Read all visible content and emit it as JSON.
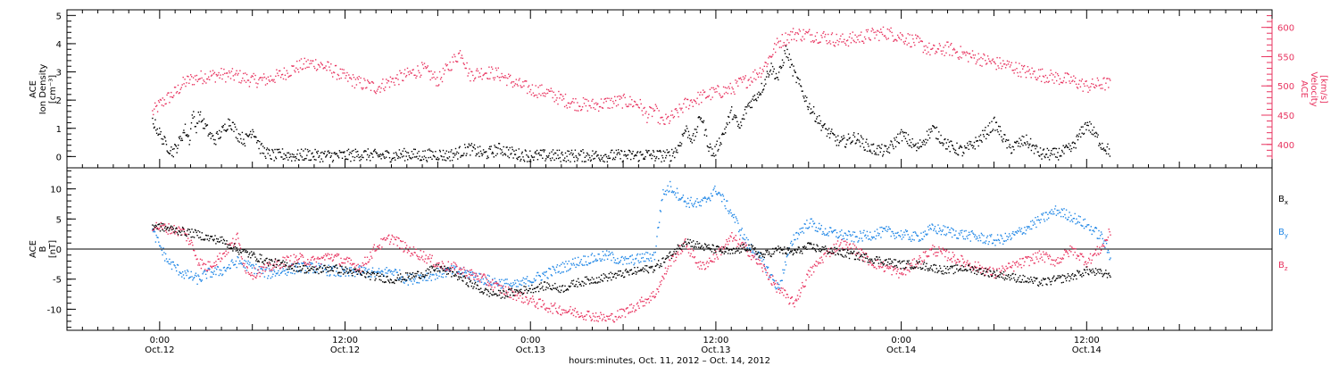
{
  "colors": {
    "density": "#000000",
    "velocity": "#e8335f",
    "bx": "#000000",
    "by": "#1e86e6",
    "bz": "#e8335f",
    "axis": "#000000"
  },
  "chart_data": [
    {
      "type": "scatter",
      "panel": "top",
      "ylabel_left": [
        "ACE",
        "Ion Density",
        "[cm⁻³]"
      ],
      "ylabel_right": [
        "ACE",
        "Velocity",
        "[km/s]"
      ],
      "ylim_left": [
        -0.4,
        5.2
      ],
      "ylim_right": [
        360,
        630
      ],
      "yticks_left": [
        0,
        1,
        2,
        3,
        4,
        5
      ],
      "yticks_right": [
        400,
        450,
        500,
        550,
        600
      ],
      "series": [
        {
          "axis": "left",
          "x": [
            -0.5,
            0.0,
            0.3,
            0.6,
            0.8,
            1.0,
            1.2,
            1.6,
            1.9,
            2.1,
            2.3,
            2.5,
            2.8,
            3.2,
            3.5,
            4.0,
            4.5,
            5.0,
            5.5,
            6.0,
            6.5,
            7.0,
            7.5,
            8.0,
            8.5,
            9.0,
            9.5,
            10.0,
            11.0,
            12.0,
            13.0,
            14.0,
            15.0,
            16.0,
            17.0,
            18.0,
            18.5,
            19.0,
            20.0,
            21.0,
            22.0,
            23.0,
            24.0,
            25.0,
            26.0,
            27.0,
            28.0,
            29.0,
            30.0,
            31.0,
            31.5,
            32.0,
            33.0,
            33.5,
            34.0,
            34.5,
            35.0,
            35.5,
            35.8,
            36.0,
            36.5,
            37.0,
            37.5,
            38.0,
            38.5,
            39.0,
            39.5,
            40.0,
            40.5,
            41.0,
            42.0,
            43.0,
            44.0,
            45.0,
            46.0,
            47.0,
            48.0,
            49.0,
            50.0,
            51.0,
            52.0,
            53.0,
            54.0,
            55.0,
            56.0,
            57.0,
            58.0,
            59.0,
            60.0,
            61.0,
            61.5
          ],
          "y": [
            1.3,
            0.8,
            0.5,
            0.3,
            0.2,
            0.3,
            0.5,
            1.0,
            0.6,
            1.6,
            1.0,
            1.5,
            1.2,
            0.8,
            0.6,
            0.9,
            1.3,
            0.8,
            0.6,
            1.0,
            0.3,
            0.1,
            0.05,
            0.1,
            0.05,
            0.05,
            0.1,
            0.05,
            0.05,
            0.05,
            0.1,
            0.05,
            0.05,
            0.1,
            0.05,
            0.1,
            0.05,
            0.1,
            0.3,
            0.1,
            0.3,
            0.1,
            0.05,
            0.05,
            0.05,
            0.05,
            0.05,
            0.05,
            0.05,
            0.05,
            0.1,
            0.05,
            0.05,
            0.3,
            1.0,
            0.6,
            1.5,
            0.4,
            0.1,
            0.3,
            0.9,
            1.6,
            1.0,
            1.8,
            2.1,
            2.5,
            3.2,
            2.8,
            3.8,
            3.0,
            1.8,
            1.0,
            0.5,
            0.7,
            0.3,
            0.2,
            0.8,
            0.3,
            1.0,
            0.4,
            0.2,
            0.6,
            1.2,
            0.3,
            0.6,
            0.1,
            0.1,
            0.3,
            1.2,
            0.4,
            0.2
          ]
        },
        {
          "axis": "right",
          "x": [
            -0.5,
            0.0,
            0.5,
            1.0,
            1.5,
            2.0,
            3.0,
            4.0,
            5.0,
            6.0,
            7.0,
            8.0,
            9.0,
            10.0,
            11.0,
            12.0,
            13.0,
            14.0,
            15.0,
            16.0,
            17.0,
            18.0,
            19.0,
            19.5,
            20.0,
            21.0,
            22.0,
            23.0,
            24.0,
            25.0,
            26.0,
            27.0,
            28.0,
            29.0,
            30.0,
            31.0,
            31.5,
            32.0,
            32.5,
            33.0,
            33.5,
            34.0,
            35.0,
            36.0,
            37.0,
            37.5,
            38.0,
            39.0,
            40.0,
            41.0,
            42.0,
            43.0,
            44.0,
            45.0,
            46.0,
            47.0,
            48.0,
            49.0,
            50.0,
            51.0,
            52.0,
            53.0,
            54.0,
            55.0,
            56.0,
            57.0,
            58.0,
            59.0,
            60.0,
            61.0,
            61.5
          ],
          "y": [
            455,
            470,
            480,
            490,
            505,
            512,
            518,
            520,
            518,
            510,
            512,
            522,
            535,
            540,
            530,
            515,
            505,
            498,
            510,
            520,
            530,
            510,
            545,
            560,
            520,
            525,
            520,
            505,
            495,
            490,
            478,
            470,
            468,
            472,
            475,
            470,
            450,
            460,
            438,
            445,
            455,
            470,
            482,
            490,
            495,
            505,
            510,
            530,
            575,
            590,
            588,
            585,
            578,
            582,
            588,
            592,
            585,
            575,
            560,
            565,
            555,
            548,
            540,
            535,
            525,
            520,
            515,
            510,
            500,
            505,
            503
          ]
        }
      ]
    },
    {
      "type": "scatter",
      "panel": "bottom",
      "ylabel": [
        "ACE",
        "B",
        "[nT]"
      ],
      "ylim": [
        -13.5,
        13.5
      ],
      "yticks": [
        -10,
        -5,
        0,
        5,
        10
      ],
      "series": [
        {
          "name": "B",
          "sub": "x",
          "x": [
            -0.5,
            0.5,
            1.5,
            2.5,
            3.0,
            4.0,
            5.0,
            6.0,
            7.0,
            8.0,
            9.0,
            10.0,
            11.0,
            12.0,
            13.0,
            14.0,
            15.0,
            16.0,
            17.0,
            18.0,
            19.0,
            20.0,
            21.0,
            22.0,
            23.0,
            24.0,
            25.0,
            26.0,
            27.0,
            28.0,
            29.0,
            30.0,
            31.0,
            32.0,
            33.0,
            34.0,
            35.0,
            36.0,
            37.0,
            38.0,
            39.0,
            40.0,
            41.0,
            42.0,
            43.0,
            44.0,
            45.0,
            46.0,
            47.0,
            48.0,
            49.0,
            50.0,
            51.0,
            52.0,
            53.0,
            54.0,
            55.0,
            56.0,
            57.0,
            58.0,
            59.0,
            60.0,
            61.0,
            61.5
          ],
          "y": [
            4.0,
            3.5,
            3.0,
            2.5,
            2.0,
            1.5,
            0.0,
            -1.0,
            -2.0,
            -2.5,
            -3.0,
            -3.5,
            -3.0,
            -3.5,
            -4.0,
            -4.5,
            -5.0,
            -4.5,
            -4.0,
            -3.0,
            -4.0,
            -5.5,
            -7.0,
            -7.5,
            -7.0,
            -6.5,
            -6.0,
            -6.5,
            -5.5,
            -5.0,
            -4.5,
            -4.0,
            -3.5,
            -3.0,
            -1.0,
            1.5,
            0.5,
            0.0,
            -0.5,
            0.5,
            -1.0,
            0.0,
            -0.5,
            0.5,
            0.0,
            -0.5,
            -1.0,
            -1.5,
            -2.0,
            -2.5,
            -2.5,
            -3.0,
            -3.5,
            -3.0,
            -3.5,
            -4.0,
            -4.5,
            -5.0,
            -5.5,
            -5.0,
            -4.5,
            -3.5,
            -4.0,
            -4.0
          ]
        },
        {
          "name": "B",
          "sub": "y",
          "x": [
            -0.5,
            0.5,
            1.5,
            2.5,
            3.0,
            4.0,
            5.0,
            6.0,
            7.0,
            8.0,
            9.0,
            10.0,
            11.0,
            12.0,
            13.0,
            14.0,
            15.0,
            16.0,
            17.0,
            18.0,
            19.0,
            20.0,
            21.0,
            22.0,
            23.0,
            24.0,
            25.0,
            26.0,
            27.0,
            28.0,
            29.0,
            30.0,
            31.0,
            32.0,
            32.5,
            33.0,
            34.0,
            35.0,
            36.0,
            37.0,
            38.0,
            39.0,
            40.0,
            41.0,
            42.0,
            43.0,
            44.0,
            45.0,
            46.0,
            47.0,
            48.0,
            49.0,
            50.0,
            51.0,
            52.0,
            53.0,
            54.0,
            55.0,
            56.0,
            57.0,
            58.0,
            59.0,
            60.0,
            61.0,
            61.5
          ],
          "y": [
            3.0,
            -2.0,
            -4.0,
            -5.0,
            -4.0,
            -3.5,
            -2.0,
            -3.0,
            -4.0,
            -3.5,
            -3.0,
            -3.0,
            -3.5,
            -4.0,
            -3.5,
            -4.0,
            -3.5,
            -5.0,
            -4.5,
            -4.0,
            -3.5,
            -4.0,
            -5.0,
            -5.5,
            -6.0,
            -5.0,
            -4.0,
            -3.0,
            -2.0,
            -1.5,
            -1.0,
            -2.0,
            -1.5,
            -1.0,
            9.0,
            10.5,
            8.0,
            7.5,
            10.0,
            6.0,
            1.0,
            -2.0,
            -6.5,
            2.0,
            4.5,
            3.0,
            2.5,
            2.0,
            2.5,
            3.0,
            2.5,
            2.0,
            3.5,
            3.0,
            2.5,
            2.0,
            1.5,
            2.0,
            3.5,
            5.0,
            6.5,
            5.5,
            4.0,
            2.0,
            -1.5
          ]
        },
        {
          "name": "B",
          "sub": "z",
          "x": [
            -0.5,
            0.5,
            1.5,
            2.0,
            2.5,
            3.0,
            4.0,
            5.0,
            5.5,
            6.0,
            7.0,
            8.0,
            9.0,
            10.0,
            11.0,
            12.0,
            13.0,
            14.0,
            15.0,
            16.0,
            17.0,
            18.0,
            19.0,
            20.0,
            21.0,
            22.0,
            23.0,
            24.0,
            25.0,
            26.0,
            27.0,
            28.0,
            29.0,
            30.0,
            31.0,
            32.0,
            32.5,
            33.0,
            34.0,
            35.0,
            36.0,
            37.0,
            38.0,
            39.0,
            40.0,
            41.0,
            42.0,
            43.0,
            44.0,
            45.0,
            46.0,
            47.0,
            48.0,
            49.0,
            50.0,
            51.0,
            52.0,
            53.0,
            54.0,
            55.0,
            56.0,
            57.0,
            58.0,
            59.0,
            60.0,
            61.0,
            61.5
          ],
          "y": [
            4.0,
            3.5,
            3.0,
            1.0,
            -2.0,
            -3.0,
            -1.0,
            2.0,
            -3.0,
            -4.0,
            -3.0,
            -2.0,
            -1.5,
            -2.0,
            -1.0,
            -2.0,
            -3.0,
            0.5,
            2.0,
            0.0,
            -1.0,
            -2.5,
            -3.0,
            -4.0,
            -5.0,
            -6.5,
            -7.5,
            -8.5,
            -9.5,
            -10.0,
            -10.5,
            -11.0,
            -11.5,
            -10.5,
            -9.0,
            -7.5,
            -5.0,
            -2.0,
            1.0,
            -3.0,
            -1.0,
            2.0,
            0.0,
            -3.0,
            -6.5,
            -9.0,
            -4.0,
            -1.0,
            1.0,
            0.0,
            -2.0,
            -3.0,
            -4.0,
            -2.0,
            0.0,
            -1.0,
            -2.0,
            -3.0,
            -4.0,
            -3.0,
            -2.0,
            -1.0,
            -2.0,
            0.0,
            -2.0,
            0.5,
            3.0
          ]
        }
      ]
    }
  ],
  "x_axis": {
    "range_hours": [
      -6,
      72
    ],
    "tick_labels": [
      {
        "x": 0,
        "line1": "0:00",
        "line2": "Oct.12"
      },
      {
        "x": 12,
        "line1": "12:00",
        "line2": "Oct.12"
      },
      {
        "x": 24,
        "line1": "0:00",
        "line2": "Oct.13"
      },
      {
        "x": 36,
        "line1": "12:00",
        "line2": "Oct.13"
      },
      {
        "x": 48,
        "line1": "0:00",
        "line2": "Oct.14"
      },
      {
        "x": 60,
        "line1": "12:00",
        "line2": "Oct.14"
      }
    ],
    "xlabel": "hours:minutes, Oct. 11, 2012 – Oct. 14, 2012"
  }
}
